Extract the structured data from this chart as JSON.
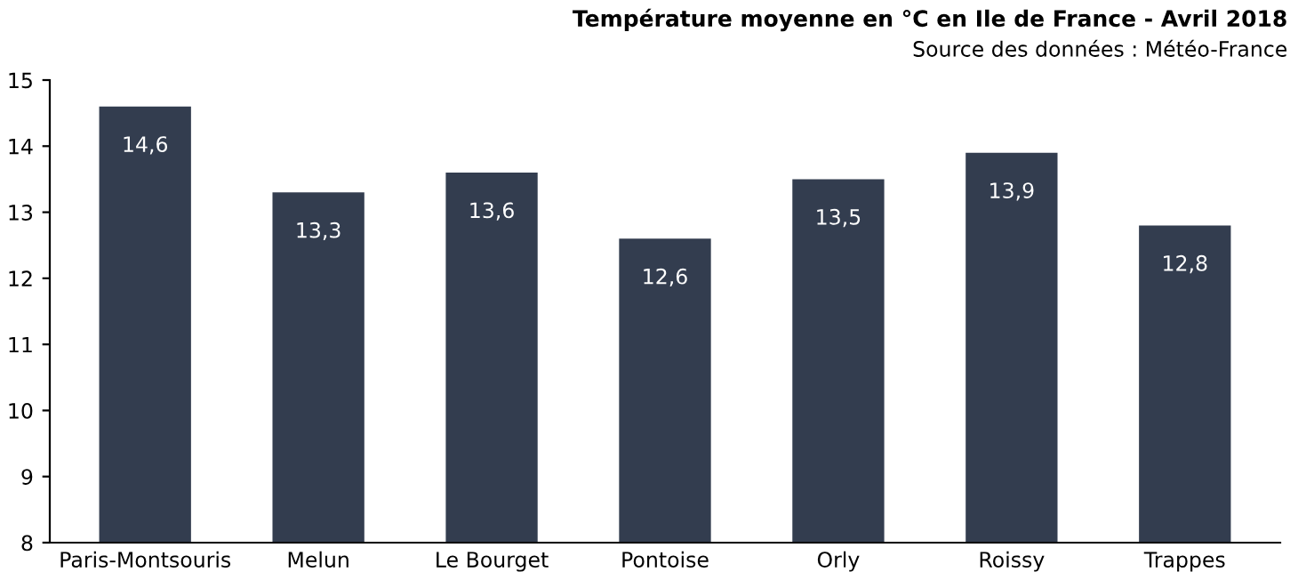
{
  "chart_data": {
    "type": "bar",
    "title": "Température moyenne en °C en Ile de France - Avril 2018",
    "subtitle": "Source des données : Météo-France",
    "categories": [
      "Paris-Montsouris",
      "Melun",
      "Le Bourget",
      "Pontoise",
      "Orly",
      "Roissy",
      "Trappes"
    ],
    "values": [
      14.6,
      13.3,
      13.6,
      12.6,
      13.5,
      13.9,
      12.8
    ],
    "value_labels": [
      "14,6",
      "13,3",
      "13,6",
      "12,6",
      "13,5",
      "13,9",
      "12,8"
    ],
    "color": "#333d4f",
    "ylim": [
      8,
      15
    ],
    "yticks": [
      8,
      9,
      10,
      11,
      12,
      13,
      14,
      15
    ],
    "grid": false,
    "legend": false
  }
}
